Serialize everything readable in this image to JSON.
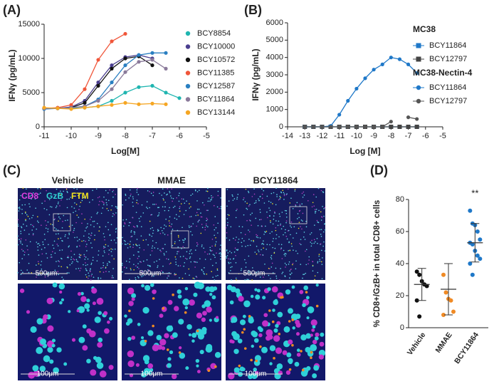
{
  "chart_data": [
    {
      "type": "line",
      "panel": "(A)",
      "xlabel": "Log[M]",
      "ylabel": "IFNγ (pg/mL)",
      "xlim": [
        -11,
        -5
      ],
      "xticks": [
        -11,
        -10,
        -9,
        -8,
        -7,
        -6,
        -5
      ],
      "ylim": [
        0,
        15000
      ],
      "yticks": [
        0,
        5000,
        10000,
        15000
      ],
      "x": [
        -11,
        -10.5,
        -10,
        -9.5,
        -9,
        -8.5,
        -8,
        -7.5,
        -7,
        -6.5,
        -6
      ],
      "series": [
        {
          "name": "BCY8854",
          "color": "#1fb5b0",
          "values": [
            2700,
            2700,
            2700,
            2800,
            3000,
            3800,
            5000,
            5800,
            6000,
            5000,
            4200
          ]
        },
        {
          "name": "BCY10000",
          "color": "#4b3f8f",
          "values": [
            2700,
            2700,
            2900,
            3800,
            6500,
            9000,
            10200,
            10500,
            10000,
            null,
            null
          ]
        },
        {
          "name": "BCY10572",
          "color": "#111111",
          "values": [
            2700,
            2700,
            2800,
            3500,
            6000,
            8500,
            10000,
            10300,
            9000,
            null,
            null
          ]
        },
        {
          "name": "BCY11385",
          "color": "#f0563a",
          "values": [
            2700,
            2800,
            3200,
            5500,
            9800,
            12500,
            13600,
            null,
            null,
            null,
            null
          ]
        },
        {
          "name": "BCY12587",
          "color": "#2a7fc1",
          "values": [
            2600,
            2700,
            2800,
            3000,
            4000,
            6500,
            9000,
            10500,
            10800,
            10800,
            null
          ]
        },
        {
          "name": "BCY11864",
          "color": "#8a7a9a",
          "values": [
            2700,
            2700,
            2800,
            3000,
            3800,
            5500,
            8000,
            9500,
            9800,
            8500,
            null
          ]
        },
        {
          "name": "BCY13144",
          "color": "#f5a623",
          "values": [
            2800,
            2700,
            2600,
            2800,
            3000,
            3200,
            3500,
            3300,
            3400,
            3300,
            null
          ]
        }
      ]
    },
    {
      "type": "line",
      "panel": "(B)",
      "xlabel": "Log [M]",
      "ylabel": "IFNγ (pg/mL)",
      "xlim": [
        -14,
        -5
      ],
      "xticks": [
        -14,
        -13,
        -12,
        -11,
        -10,
        -9,
        -8,
        -7,
        -6,
        -5
      ],
      "ylim": [
        0,
        6000
      ],
      "yticks": [
        0,
        1000,
        2000,
        3000,
        4000,
        5000,
        6000
      ],
      "legend_titles": [
        "MC38",
        "MC38-Nectin-4"
      ],
      "x": [
        -13,
        -12.5,
        -12,
        -11.5,
        -11,
        -10.5,
        -10,
        -9.5,
        -9,
        -8.5,
        -8,
        -7.5,
        -7,
        -6.5
      ],
      "series": [
        {
          "name": "BCY11864",
          "color": "#1f78c8",
          "marker": "square",
          "values": [
            0,
            0,
            0,
            0,
            0,
            0,
            0,
            0,
            0,
            0,
            0,
            0,
            0,
            0
          ]
        },
        {
          "name": "BCY12797",
          "color": "#444444",
          "marker": "square",
          "values": [
            0,
            0,
            0,
            0,
            0,
            0,
            0,
            0,
            0,
            0,
            0,
            0,
            0,
            0
          ]
        },
        {
          "name": "BCY11864",
          "color": "#1f78c8",
          "marker": "circle",
          "values": [
            0,
            0,
            0,
            50,
            700,
            1500,
            2200,
            2800,
            3300,
            3600,
            4000,
            3900,
            3600,
            3100
          ]
        },
        {
          "name": "BCY12797",
          "color": "#555555",
          "marker": "circle",
          "values": [
            0,
            0,
            0,
            0,
            0,
            0,
            0,
            0,
            0,
            0,
            300,
            null,
            550,
            450
          ]
        }
      ]
    },
    {
      "type": "dot",
      "panel": "(D)",
      "ylabel": "% CD8+/GzB+ in total CD8+ cells",
      "ylim": [
        0,
        80
      ],
      "yticks": [
        0,
        20,
        40,
        60,
        80
      ],
      "categories": [
        "Vehicle",
        "MMAE",
        "BCY11864"
      ],
      "colors": [
        "#111111",
        "#f08a24",
        "#1f78c8"
      ],
      "means": [
        27,
        24,
        53
      ],
      "sd": [
        10,
        16,
        12
      ],
      "points": [
        [
          35,
          33,
          29,
          27,
          26,
          17,
          7
        ],
        [
          33,
          22,
          18,
          17,
          10,
          8
        ],
        [
          73,
          65,
          64,
          60,
          55,
          53,
          52,
          48,
          45,
          43,
          40,
          33
        ]
      ],
      "annotation": "**"
    }
  ],
  "panel_c": {
    "panel": "(C)",
    "columns": [
      "Vehicle",
      "MMAE",
      "BCY11864"
    ],
    "stains": [
      {
        "name": "CD8",
        "color": "#e040e0"
      },
      {
        "name": "GzB",
        "color": "#30d0d0"
      },
      {
        "name": "FTM",
        "color": "#f0e020"
      }
    ],
    "scale_top": [
      "500μm",
      "500μm",
      "500μm"
    ],
    "scale_bottom": [
      "100μm",
      "100μm",
      "100μm"
    ]
  }
}
